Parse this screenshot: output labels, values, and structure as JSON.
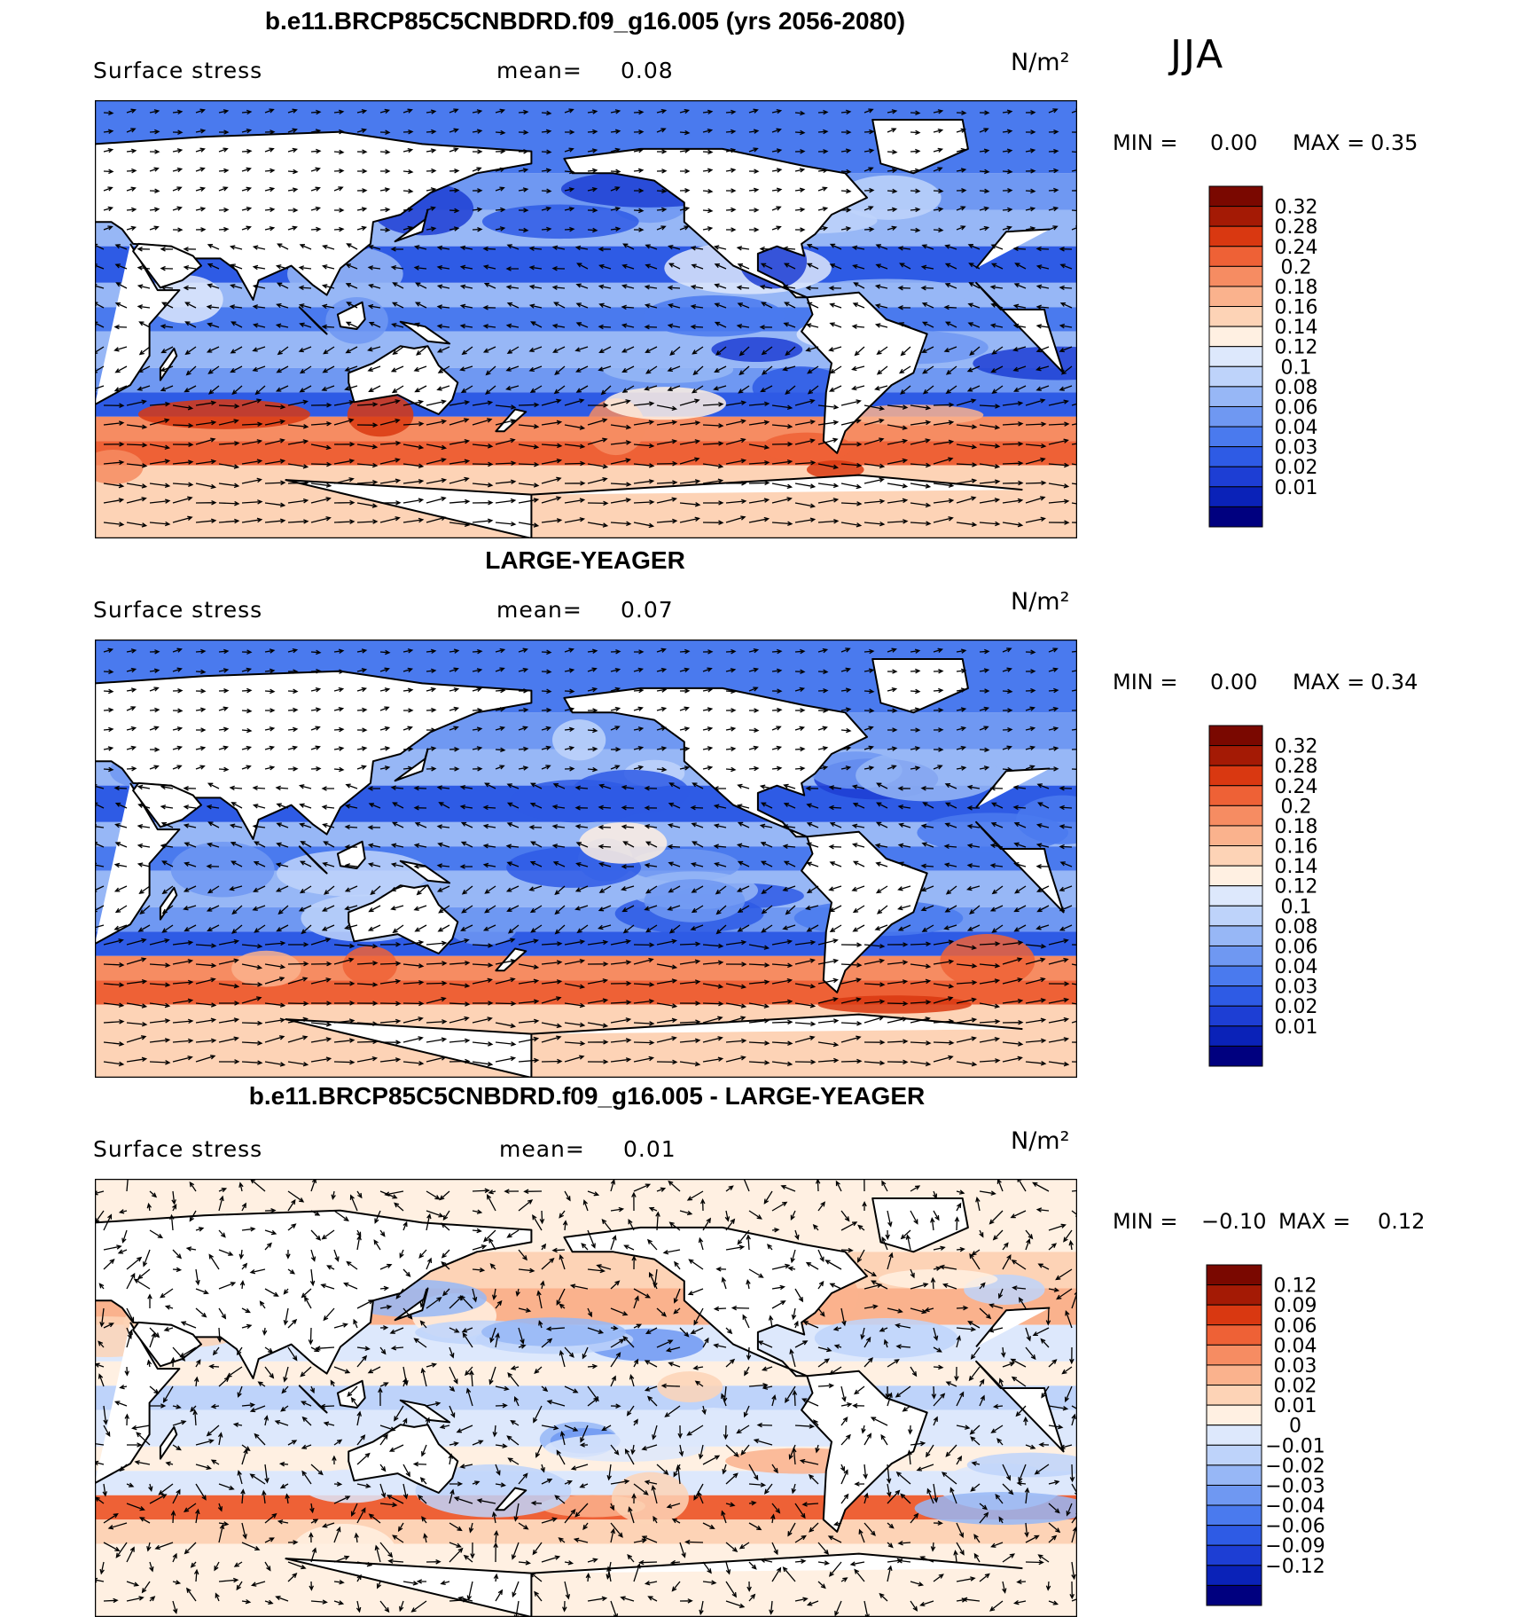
{
  "season": "JJA",
  "units": "N/m²",
  "panels": [
    {
      "title": "b.e11.BRCP85C5CNBDRD.f09_g16.005 (yrs 2056-2080)",
      "variable": "Surface stress",
      "mean_label": "mean=",
      "mean_value": "0.08",
      "min_label": "MIN =",
      "min_value": "0.00",
      "max_label": "MAX =",
      "max_value": "0.35",
      "colorbar_labels": [
        "0.32",
        "0.28",
        "0.24",
        "0.2",
        "0.18",
        "0.16",
        "0.14",
        "0.12",
        "0.1",
        "0.08",
        "0.06",
        "0.04",
        "0.03",
        "0.02",
        "0.01"
      ]
    },
    {
      "title": "LARGE-YEAGER",
      "variable": "Surface stress",
      "mean_label": "mean=",
      "mean_value": "0.07",
      "min_label": "MIN =",
      "min_value": "0.00",
      "max_label": "MAX =",
      "max_value": "0.34",
      "colorbar_labels": [
        "0.32",
        "0.28",
        "0.24",
        "0.2",
        "0.18",
        "0.16",
        "0.14",
        "0.12",
        "0.1",
        "0.08",
        "0.06",
        "0.04",
        "0.03",
        "0.02",
        "0.01"
      ]
    },
    {
      "title": "b.e11.BRCP85C5CNBDRD.f09_g16.005 - LARGE-YEAGER",
      "variable": "Surface stress",
      "mean_label": "mean=",
      "mean_value": "0.01",
      "min_label": "MIN =",
      "min_value": "−0.10",
      "max_label": "MAX =",
      "max_value": "0.12",
      "colorbar_labels": [
        "0.12",
        "0.09",
        "0.06",
        "0.04",
        "0.03",
        "0.02",
        "0.01",
        "0",
        "−0.01",
        "−0.02",
        "−0.03",
        "−0.04",
        "−0.06",
        "−0.09",
        "−0.12"
      ]
    }
  ],
  "colors": {
    "abs_scale": [
      "#00007f",
      "#0a22b8",
      "#1d3ed4",
      "#2e5be5",
      "#4a7aee",
      "#6f98f2",
      "#97b7f6",
      "#bed3fa",
      "#dde8fc",
      "#fff0e2",
      "#fdd3b6",
      "#fab28d",
      "#f68c62",
      "#ee6136",
      "#d93811",
      "#a41a05",
      "#7a0800"
    ],
    "diff_scale": [
      "#00007f",
      "#0a22b8",
      "#1d3ed4",
      "#2e5be5",
      "#4a7aee",
      "#6f98f2",
      "#97b7f6",
      "#bed3fa",
      "#dde8fc",
      "#fff0e2",
      "#fdd3b6",
      "#fab28d",
      "#f68c62",
      "#ee6136",
      "#d93811",
      "#a41a05",
      "#7a0800"
    ],
    "land": "#ffffff",
    "coast": "#000000"
  }
}
